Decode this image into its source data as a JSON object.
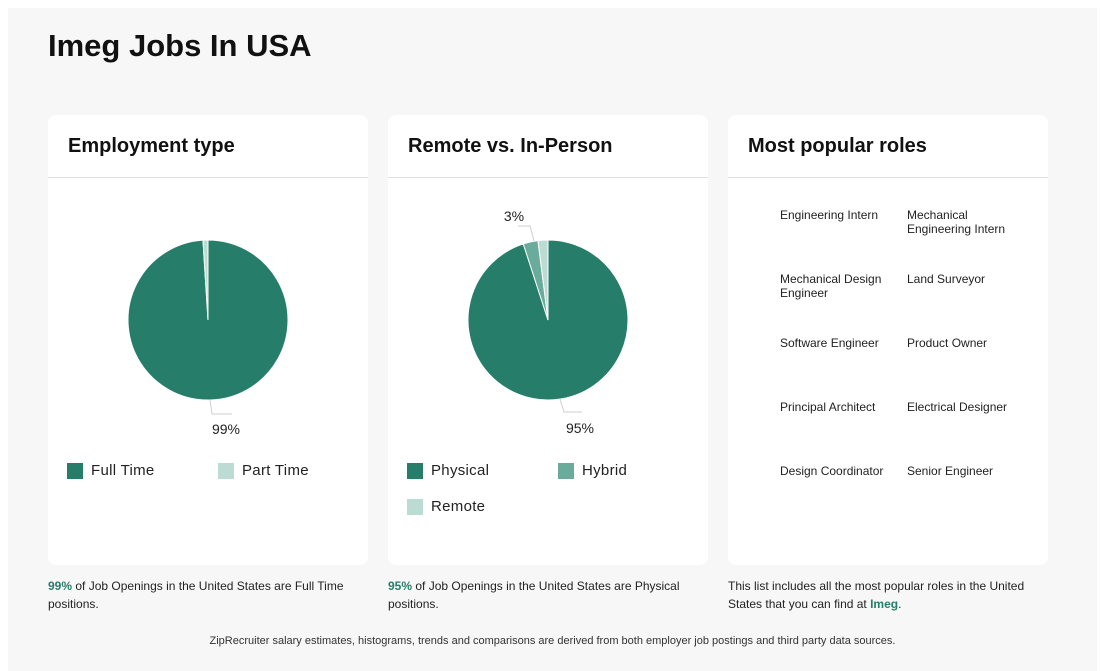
{
  "page": {
    "title": "Imeg Jobs In USA"
  },
  "colors": {
    "physical": "#267e6a",
    "hybrid": "#6aab9c",
    "remote": "#bcdcd3",
    "part_time": "#bcdcd3",
    "highlight": "#267e6a"
  },
  "employment": {
    "title": "Employment type",
    "percent_label": "99%",
    "legend": [
      "Full Time",
      "Part Time"
    ],
    "note": {
      "highlight": "99%",
      "text": " of Job Openings in the United States are Full Time positions."
    }
  },
  "remote": {
    "title": "Remote vs. In-Person",
    "labels": {
      "main": "95%",
      "minor": "3%"
    },
    "legend": [
      "Physical",
      "Hybrid",
      "Remote"
    ],
    "note": {
      "highlight": "95%",
      "text": " of Job Openings in the United States are Physical positions."
    }
  },
  "roles": {
    "title": "Most popular roles",
    "items": [
      "Engineering Intern",
      "Mechanical Engineering Intern",
      "Mechanical Design Engineer",
      "Land Surveyor",
      "Software Engineer",
      "Product Owner",
      "Principal Architect",
      "Electrical Designer",
      "Design Coordinator",
      "Senior Engineer"
    ],
    "note": {
      "text_before": "This list includes all the most popular roles in the United States that you can find at ",
      "company": "Imeg",
      "text_after": "."
    }
  },
  "footer": {
    "text": "ZipRecruiter salary estimates, histograms, trends and comparisons are derived from both employer job postings and third party data sources."
  },
  "chart_data": [
    {
      "type": "pie",
      "title": "Employment type",
      "categories": [
        "Full Time",
        "Part Time"
      ],
      "values": [
        99,
        1
      ],
      "data_labels": [
        "99%",
        ""
      ],
      "legend": "bottom"
    },
    {
      "type": "pie",
      "title": "Remote vs. In-Person",
      "categories": [
        "Physical",
        "Hybrid",
        "Remote"
      ],
      "values": [
        95,
        3,
        2
      ],
      "data_labels": [
        "95%",
        "3%",
        ""
      ],
      "legend": "bottom"
    }
  ]
}
